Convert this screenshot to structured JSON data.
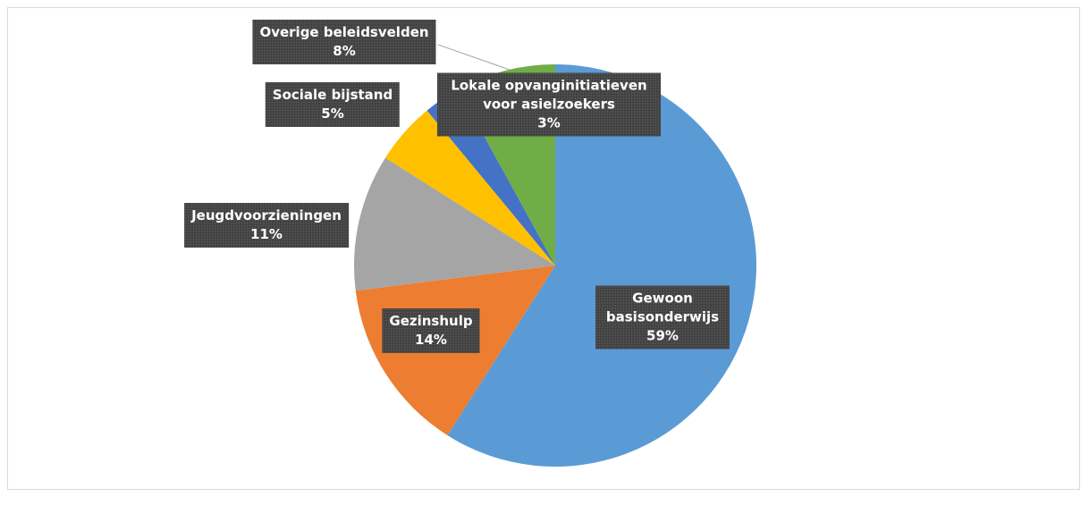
{
  "chart_data": {
    "type": "pie",
    "categories": [
      "Gewoon basisonderwijs",
      "Gezinshulp",
      "Jeugdvoorzieningen",
      "Sociale bijstand",
      "Lokale opvanginitiatieven voor asielzoekers",
      "Overige beleidsvelden"
    ],
    "values": [
      59,
      14,
      11,
      5,
      3,
      8
    ],
    "value_labels": [
      "59%",
      "14%",
      "11%",
      "5%",
      "3%",
      "8%"
    ],
    "colors": [
      "#5B9BD5",
      "#ED7D31",
      "#A5A5A5",
      "#FFC000",
      "#4472C4",
      "#70AD47"
    ]
  }
}
